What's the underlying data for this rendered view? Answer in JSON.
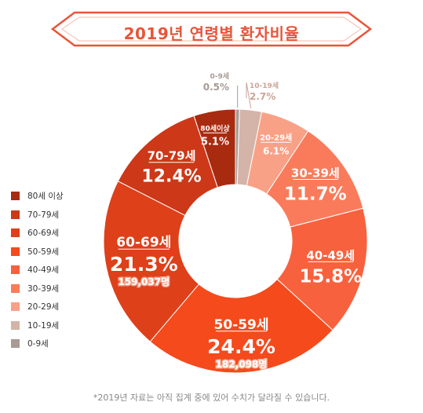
{
  "chart_data": {
    "type": "pie",
    "title": "2019년 연령별 환자비율",
    "categories": [
      "0-9세",
      "10-19세",
      "20-29세",
      "30-39세",
      "40-49세",
      "50-59세",
      "60-69세",
      "70-79세",
      "80세 이상"
    ],
    "values": [
      0.5,
      2.7,
      6.1,
      11.7,
      15.8,
      24.4,
      21.3,
      12.4,
      5.1
    ],
    "value_labels": [
      "0.5%",
      "2.7%",
      "6.1%",
      "11.7%",
      "15.8%",
      "24.4%",
      "21.3%",
      "12.4%",
      "5.1%"
    ],
    "segment_names": [
      "0-9세",
      "10-19세",
      "20-29세",
      "30-39세",
      "40-49세",
      "50-59세",
      "60-69세",
      "70-79세",
      "80세이상"
    ],
    "counts": {
      "50-59세": "182,098명",
      "60-69세": "159,037명"
    },
    "colors": [
      "#a89a95",
      "#d4b4a8",
      "#f9a187",
      "#fa7b5b",
      "#f8613d",
      "#f54a1c",
      "#de401a",
      "#cc3818",
      "#a82b10"
    ],
    "legend": {
      "position": "left",
      "items": [
        "80세 이상",
        "70-79세",
        "60-69세",
        "50-59세",
        "40-49세",
        "30-39세",
        "20-29세",
        "10-19세",
        "0-9세"
      ],
      "colors": [
        "#a82b10",
        "#cc3818",
        "#de401a",
        "#f54a1c",
        "#f8613d",
        "#fa7b5b",
        "#f9a187",
        "#d4b4a8",
        "#a89a95"
      ]
    },
    "footnote": "*2019년 자료는 아직 집계 중에 있어 수치가 달라질 수 있습니다."
  },
  "accent_color": "#e8553a"
}
